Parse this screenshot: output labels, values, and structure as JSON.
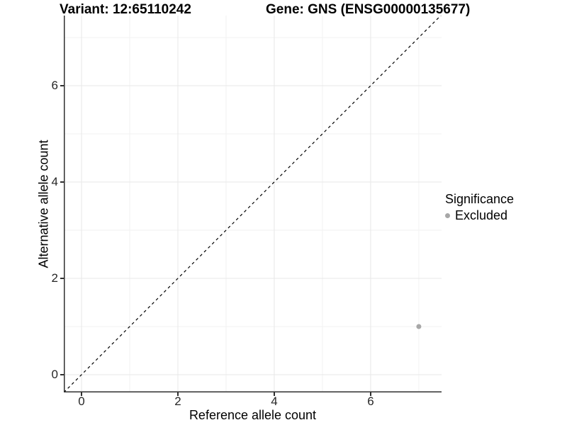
{
  "chart_data": {
    "type": "scatter",
    "title_left": "Variant: 12:65110242",
    "title_right": "Gene: GNS (ENSG00000135677)",
    "xlabel": "Reference allele count",
    "ylabel": "Alternative allele count",
    "xlim": [
      -0.368,
      7.472
    ],
    "ylim": [
      -0.368,
      7.455
    ],
    "x_major_ticks": [
      0,
      2,
      4,
      6
    ],
    "x_minor_ticks": [
      1,
      3,
      5,
      7
    ],
    "y_major_ticks": [
      0,
      2,
      4,
      6
    ],
    "y_minor_ticks": [
      1,
      3,
      5,
      7
    ],
    "grid": true,
    "points": [
      {
        "x": 7,
        "y": 1,
        "significance": "Excluded"
      }
    ],
    "reference_line": {
      "type": "identity",
      "style": "dashed",
      "x1": -0.368,
      "y1": -0.368,
      "x2": 7.472,
      "y2": 7.472
    },
    "legend": {
      "title": "Significance",
      "position": "right",
      "entries": [
        {
          "label": "Excluded",
          "color": "#a7a7a7"
        }
      ]
    }
  },
  "colors": {
    "point": "#a7a7a7",
    "axis_line": "#2f2f2f",
    "grid_major": "#e9e9e9",
    "grid_minor": "#f2f2f2",
    "reference_line": "#000000"
  }
}
